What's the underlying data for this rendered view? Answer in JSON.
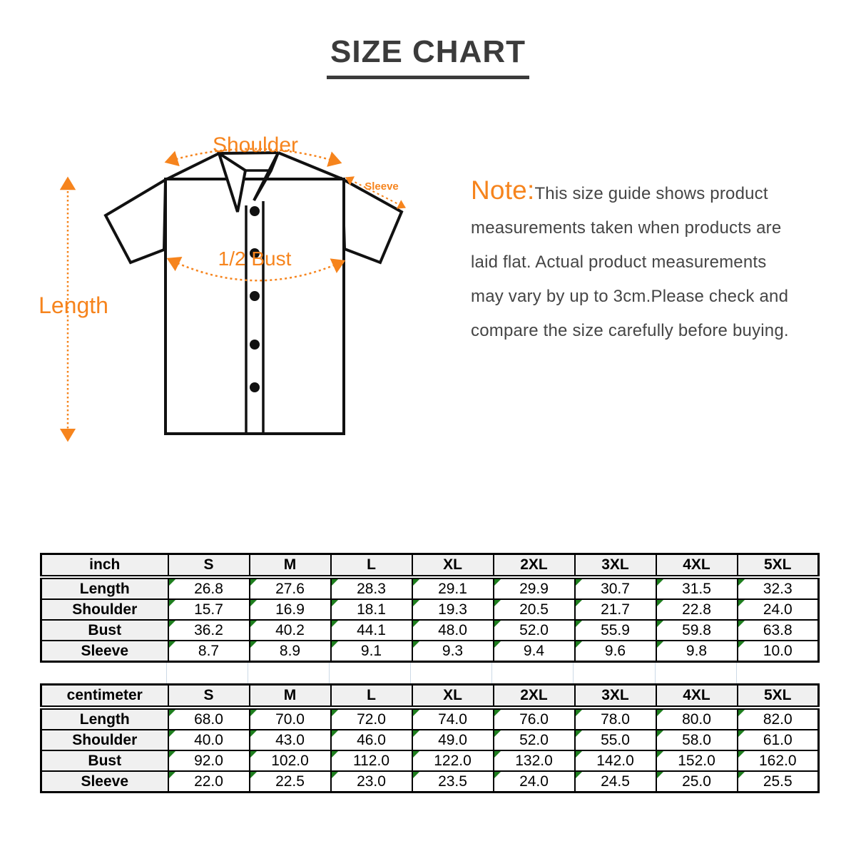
{
  "title": "SIZE CHART",
  "diagram": {
    "shoulder_label": "Shoulder",
    "sleeve_label": "Sleeve",
    "bust_label": "1/2 Bust",
    "length_label": "Length",
    "accent_color": "#f6841d",
    "outline_color": "#111111"
  },
  "note": {
    "label": "Note:",
    "lines": [
      "This size guide shows product",
      "measurements taken when products are",
      "laid flat. Actual product measurements",
      "may vary by up to 3cm.Please check and",
      "compare the size carefully before buying."
    ],
    "label_color": "#f6841d",
    "text_color": "#454545"
  },
  "tables": [
    {
      "unit": "inch",
      "sizes": [
        "S",
        "M",
        "L",
        "XL",
        "2XL",
        "3XL",
        "4XL",
        "5XL"
      ],
      "rows": [
        {
          "label": "Length",
          "values": [
            "26.8",
            "27.6",
            "28.3",
            "29.1",
            "29.9",
            "30.7",
            "31.5",
            "32.3"
          ]
        },
        {
          "label": "Shoulder",
          "values": [
            "15.7",
            "16.9",
            "18.1",
            "19.3",
            "20.5",
            "21.7",
            "22.8",
            "24.0"
          ]
        },
        {
          "label": "Bust",
          "values": [
            "36.2",
            "40.2",
            "44.1",
            "48.0",
            "52.0",
            "55.9",
            "59.8",
            "63.8"
          ]
        },
        {
          "label": "Sleeve",
          "values": [
            "8.7",
            "8.9",
            "9.1",
            "9.3",
            "9.4",
            "9.6",
            "9.8",
            "10.0"
          ]
        }
      ]
    },
    {
      "unit": "centimeter",
      "sizes": [
        "S",
        "M",
        "L",
        "XL",
        "2XL",
        "3XL",
        "4XL",
        "5XL"
      ],
      "rows": [
        {
          "label": "Length",
          "values": [
            "68.0",
            "70.0",
            "72.0",
            "74.0",
            "76.0",
            "78.0",
            "80.0",
            "82.0"
          ]
        },
        {
          "label": "Shoulder",
          "values": [
            "40.0",
            "43.0",
            "46.0",
            "49.0",
            "52.0",
            "55.0",
            "58.0",
            "61.0"
          ]
        },
        {
          "label": "Bust",
          "values": [
            "92.0",
            "102.0",
            "112.0",
            "122.0",
            "132.0",
            "142.0",
            "152.0",
            "162.0"
          ]
        },
        {
          "label": "Sleeve",
          "values": [
            "22.0",
            "22.5",
            "23.0",
            "23.5",
            "24.0",
            "24.5",
            "25.0",
            "25.5"
          ]
        }
      ]
    }
  ],
  "table_style": {
    "header_bg": "#f0f0f0",
    "cell_marker_color": "#1e7e1e",
    "grid_color": "#000000",
    "gap_gridline_color": "#ccd9e6"
  }
}
